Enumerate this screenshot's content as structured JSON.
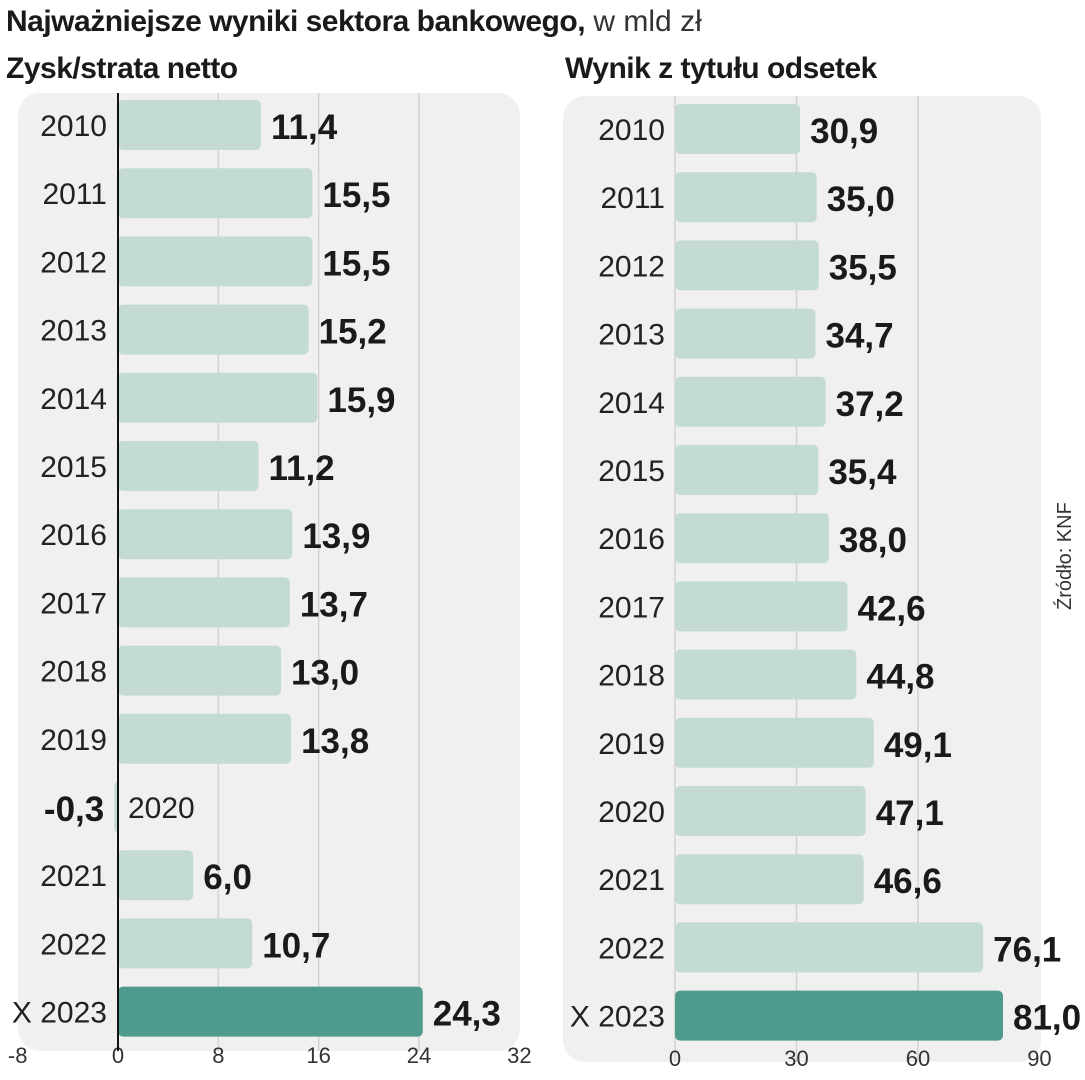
{
  "title": "Najważniejsze wyniki sektora bankowego,",
  "unit": "w mld zł",
  "source": "Źródło: KNF",
  "colors": {
    "bar": "#c3dbd3",
    "highlight": "#4e9b8d",
    "panel": "#f0f0ef",
    "grid": "#d2d2d2"
  },
  "chart_data": [
    {
      "type": "bar",
      "orientation": "horizontal",
      "title": "Zysk/strata netto",
      "categories": [
        "2010",
        "2011",
        "2012",
        "2013",
        "2014",
        "2015",
        "2016",
        "2017",
        "2018",
        "2019",
        "2020",
        "2021",
        "2022",
        "X 2023"
      ],
      "values": [
        11.4,
        15.5,
        15.5,
        15.2,
        15.9,
        11.2,
        13.9,
        13.7,
        13.0,
        13.8,
        -0.3,
        6.0,
        10.7,
        24.3
      ],
      "value_labels": [
        "11,4",
        "15,5",
        "15,5",
        "15,2",
        "15,9",
        "11,2",
        "13,9",
        "13,7",
        "13,0",
        "13,8",
        "-0,3",
        "6,0",
        "10,7",
        "24,3"
      ],
      "xlim": [
        -8,
        32
      ],
      "ticks": [
        "-8",
        "0",
        "8",
        "16",
        "24",
        "32"
      ],
      "tick_values": [
        -8,
        0,
        8,
        16,
        24,
        32
      ],
      "highlight": "X 2023",
      "grid": true
    },
    {
      "type": "bar",
      "orientation": "horizontal",
      "title": "Wynik z tytułu odsetek",
      "categories": [
        "2010",
        "2011",
        "2012",
        "2013",
        "2014",
        "2015",
        "2016",
        "2017",
        "2018",
        "2019",
        "2020",
        "2021",
        "2022",
        "X 2023"
      ],
      "values": [
        30.9,
        35.0,
        35.5,
        34.7,
        37.2,
        35.4,
        38.0,
        42.6,
        44.8,
        49.1,
        47.1,
        46.6,
        76.1,
        81.0
      ],
      "value_labels": [
        "30,9",
        "35,0",
        "35,5",
        "34,7",
        "37,2",
        "35,4",
        "38,0",
        "42,6",
        "44,8",
        "49,1",
        "47,1",
        "46,6",
        "76,1",
        "81,0"
      ],
      "xlim": [
        0,
        90
      ],
      "ticks": [
        "0",
        "30",
        "60",
        "90"
      ],
      "tick_values": [
        0,
        30,
        60,
        90
      ],
      "highlight": "X 2023",
      "grid": true
    }
  ]
}
